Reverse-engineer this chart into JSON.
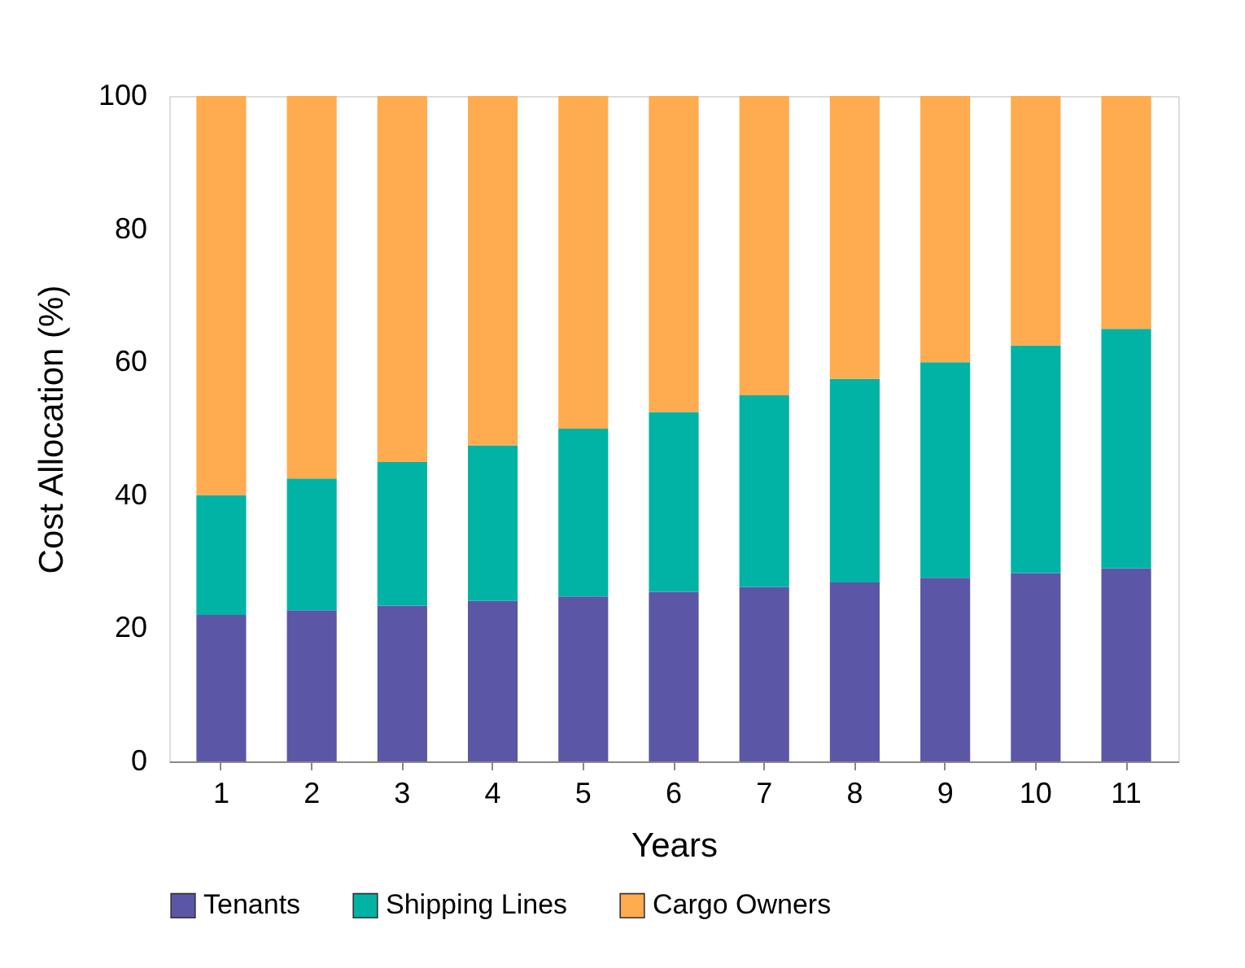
{
  "chart_data": {
    "type": "bar",
    "stacked": true,
    "xlabel": "Years",
    "ylabel": "Cost Allocation (%)",
    "categories": [
      "1",
      "2",
      "3",
      "4",
      "5",
      "6",
      "7",
      "8",
      "9",
      "10",
      "11"
    ],
    "series": [
      {
        "name": "Tenants",
        "color": "#5b57a6",
        "values": [
          22,
          22.7,
          23.4,
          24.1,
          24.8,
          25.5,
          26.2,
          26.9,
          27.6,
          28.3,
          29
        ]
      },
      {
        "name": "Shipping Lines",
        "color": "#00b3a4",
        "values": [
          18,
          19.8,
          21.6,
          23.4,
          25.2,
          27,
          28.8,
          30.6,
          32.4,
          34.2,
          36
        ]
      },
      {
        "name": "Cargo Owners",
        "color": "#ffab4f",
        "values": [
          60,
          57.5,
          55,
          52.5,
          50,
          47.5,
          45,
          42.5,
          40,
          37.5,
          35
        ]
      }
    ],
    "ylim": [
      0,
      100
    ],
    "yticks": [
      0,
      20,
      40,
      60,
      80,
      100
    ],
    "grid": false,
    "legend": "bottom"
  }
}
